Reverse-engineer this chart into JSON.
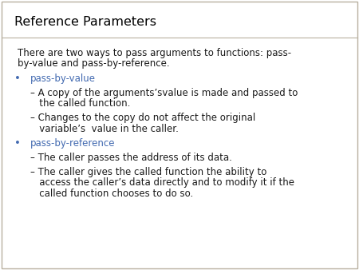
{
  "title": "Reference Parameters",
  "title_color": "#000000",
  "title_fontsize": 11.5,
  "bg_color": "#ffffff",
  "separator_color": "#b8b0a0",
  "blue_color": "#4169b0",
  "body_text_color": "#1a1a1a",
  "body_fontsize": 8.5,
  "intro_line1": "There are two ways to pass arguments to functions: pass-",
  "intro_line2": "by-value and pass-by-reference.",
  "bullet1_label": "pass-by-value",
  "b1s1_line1": "– A copy of the arguments’svalue is made and passed to",
  "b1s1_line2": "   the called function.",
  "b1s2_line1": "– Changes to the copy do not affect the original",
  "b1s2_line2": "   variable’s  value in the caller.",
  "bullet2_label": "pass-by-reference",
  "b2s1_line1": "– The caller passes the address of its data.",
  "b2s2_line1": "– The caller gives the called function the ability to",
  "b2s2_line2": "   access the caller’s data directly and to modify it if the",
  "b2s2_line3": "   called function chooses to do so."
}
